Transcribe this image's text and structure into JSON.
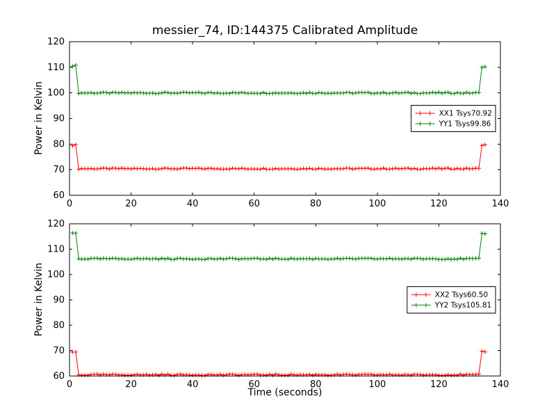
{
  "figure": {
    "title": "messier_74, ID:144375 Calibrated Amplitude",
    "xlabel": "Time (seconds)",
    "background": "#ffffff",
    "frame_color": "#000000"
  },
  "chart_data": [
    {
      "type": "line",
      "title": "messier_74, ID:144375 Calibrated Amplitude",
      "ylabel": "Power in Kelvin",
      "xlabel": "",
      "xlim": [
        0,
        140
      ],
      "ylim": [
        60,
        120
      ],
      "xticks": [
        0,
        20,
        40,
        60,
        80,
        100,
        120,
        140
      ],
      "yticks": [
        60,
        70,
        80,
        90,
        100,
        110,
        120
      ],
      "grid": false,
      "legend_loc": "center right",
      "series": [
        {
          "name": "XX1 Tsys70.92",
          "color": "#ff0000",
          "marker": "+",
          "x_step": 1,
          "segments": [
            {
              "x_start": 1,
              "x_end": 2,
              "y": 79.6
            },
            {
              "x_start": 3,
              "x_end": 133,
              "y": 70.4
            },
            {
              "x_start": 134,
              "x_end": 135,
              "y": 79.7
            }
          ]
        },
        {
          "name": "YY1 Tsys99.86",
          "color": "#008000",
          "marker": "+",
          "x_step": 1,
          "segments": [
            {
              "x_start": 1,
              "x_end": 2,
              "y": 110.6
            },
            {
              "x_start": 3,
              "x_end": 133,
              "y": 100.0
            },
            {
              "x_start": 134,
              "x_end": 135,
              "y": 110.2
            }
          ]
        }
      ]
    },
    {
      "type": "line",
      "title": "",
      "ylabel": "Power in Kelvin",
      "xlabel": "Time (seconds)",
      "xlim": [
        0,
        140
      ],
      "ylim": [
        60,
        120
      ],
      "xticks": [
        0,
        20,
        40,
        60,
        80,
        100,
        120,
        140
      ],
      "yticks": [
        60,
        70,
        80,
        90,
        100,
        110,
        120
      ],
      "grid": false,
      "legend_loc": "center right",
      "series": [
        {
          "name": "XX2 Tsys60.50",
          "color": "#ff0000",
          "marker": "+",
          "x_step": 1,
          "segments": [
            {
              "x_start": 1,
              "x_end": 2,
              "y": 69.4
            },
            {
              "x_start": 3,
              "x_end": 133,
              "y": 60.5
            },
            {
              "x_start": 134,
              "x_end": 135,
              "y": 69.5
            }
          ]
        },
        {
          "name": "YY2 Tsys105.81",
          "color": "#008000",
          "marker": "+",
          "x_step": 1,
          "segments": [
            {
              "x_start": 1,
              "x_end": 2,
              "y": 116.3
            },
            {
              "x_start": 3,
              "x_end": 133,
              "y": 106.2
            },
            {
              "x_start": 134,
              "x_end": 135,
              "y": 116.0
            }
          ]
        }
      ]
    }
  ]
}
